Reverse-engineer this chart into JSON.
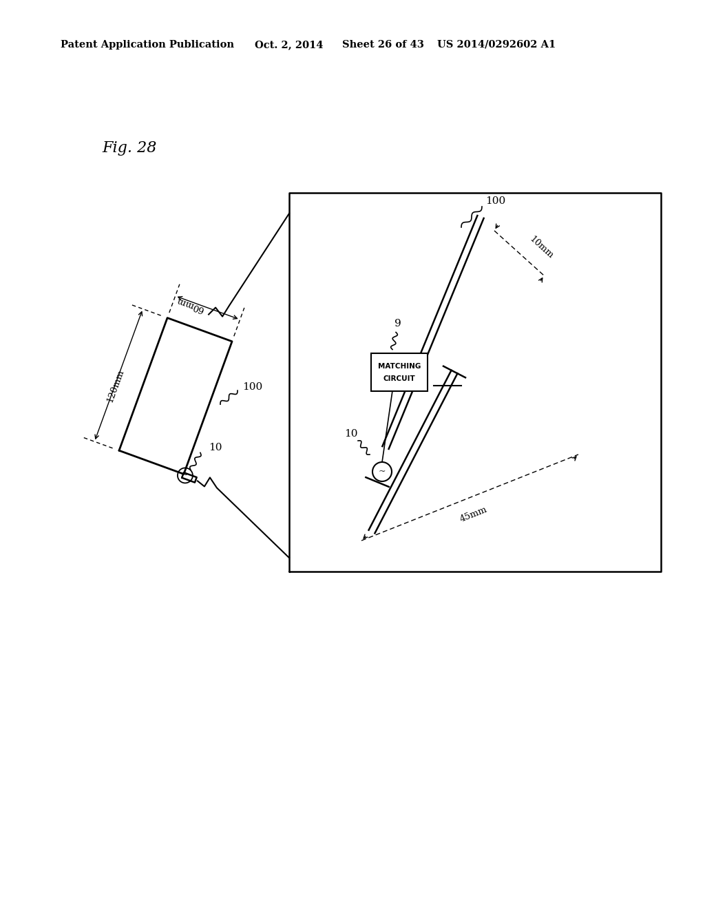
{
  "bg_color": "#ffffff",
  "line_color": "#000000",
  "header_text1": "Patent Application Publication",
  "header_text2": "Oct. 2, 2014",
  "header_text3": "Sheet 26 of 43",
  "header_text4": "US 2014/0292602 A1",
  "fig_label": "Fig. 28"
}
